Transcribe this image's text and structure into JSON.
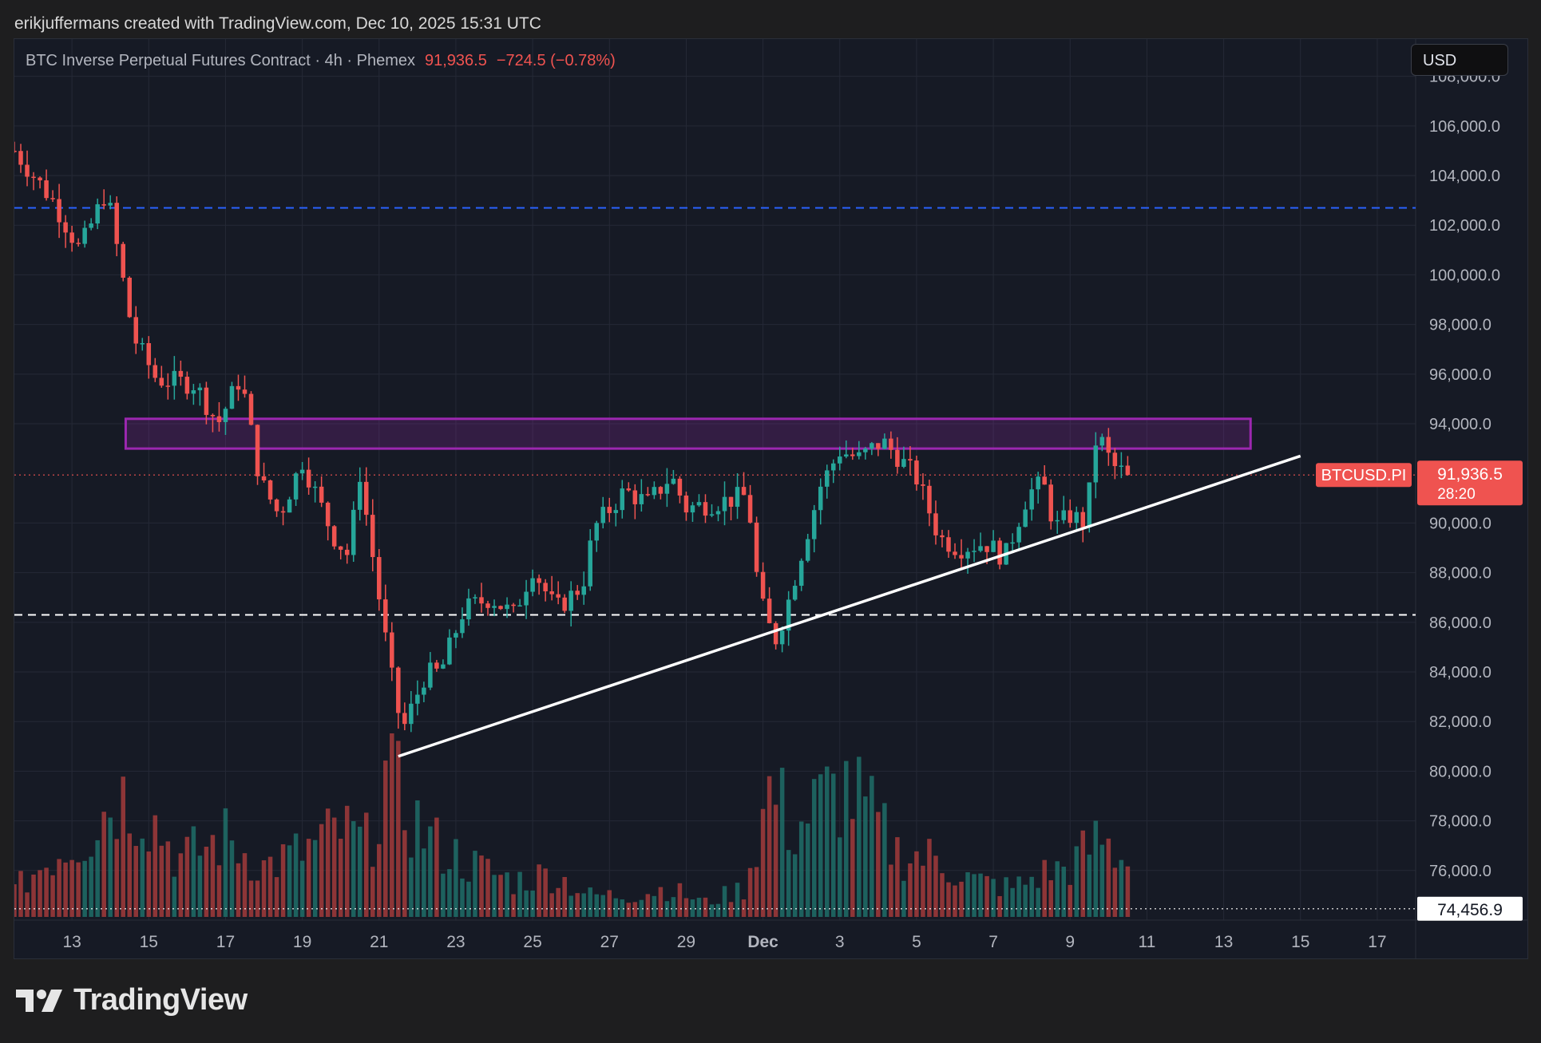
{
  "attribution": "erikjuffermans created with TradingView.com, Dec 10, 2025 15:31 UTC",
  "legend": {
    "symbol": "BTC Inverse Perpetual Futures Contract · 4h · Phemex",
    "price": "91,936.5",
    "change": "−724.5 (−0.78%)"
  },
  "currency_button": "USD",
  "brand": "TradingView",
  "colors": {
    "up": "#26a69a",
    "down": "#ef5350",
    "zone": "#9c27b0",
    "background": "#161a25"
  },
  "chart_data": {
    "type": "candlestick",
    "symbol": "BTCUSD.PI",
    "timeframe": "4h",
    "y_axis": {
      "range": [
        74000,
        109500
      ],
      "ticks": [
        "108,000.0",
        "106,000.0",
        "104,000.0",
        "102,000.0",
        "100,000.0",
        "98,000.0",
        "96,000.0",
        "94,000.0",
        "90,000.0",
        "88,000.0",
        "86,000.0",
        "84,000.0",
        "82,000.0",
        "80,000.0",
        "78,000.0",
        "76,000.0"
      ]
    },
    "x_axis": {
      "range_days": [
        11.5,
        48.0
      ],
      "ticks": [
        {
          "label": "13",
          "day": 13
        },
        {
          "label": "15",
          "day": 15
        },
        {
          "label": "17",
          "day": 17
        },
        {
          "label": "19",
          "day": 19
        },
        {
          "label": "21",
          "day": 21
        },
        {
          "label": "23",
          "day": 23
        },
        {
          "label": "25",
          "day": 25
        },
        {
          "label": "27",
          "day": 27
        },
        {
          "label": "29",
          "day": 29
        },
        {
          "label": "Dec",
          "day": 31
        },
        {
          "label": "3",
          "day": 33
        },
        {
          "label": "5",
          "day": 35
        },
        {
          "label": "7",
          "day": 37
        },
        {
          "label": "9",
          "day": 39
        },
        {
          "label": "11",
          "day": 41
        },
        {
          "label": "13",
          "day": 43
        },
        {
          "label": "15",
          "day": 45
        },
        {
          "label": "17",
          "day": 47
        }
      ]
    },
    "key_points": [
      {
        "day": 11.5,
        "price": 105000
      },
      {
        "day": 12.5,
        "price": 103000
      },
      {
        "day": 13.2,
        "price": 101000
      },
      {
        "day": 13.9,
        "price": 103400
      },
      {
        "day": 14.6,
        "price": 97500
      },
      {
        "day": 15.2,
        "price": 95800
      },
      {
        "day": 16.2,
        "price": 95600
      },
      {
        "day": 16.8,
        "price": 94000
      },
      {
        "day": 17.4,
        "price": 95900
      },
      {
        "day": 17.9,
        "price": 91700
      },
      {
        "day": 18.4,
        "price": 90300
      },
      {
        "day": 19.0,
        "price": 92500
      },
      {
        "day": 19.8,
        "price": 89500
      },
      {
        "day": 20.2,
        "price": 88700
      },
      {
        "day": 20.5,
        "price": 92000
      },
      {
        "day": 20.9,
        "price": 88000
      },
      {
        "day": 21.3,
        "price": 84000
      },
      {
        "day": 21.6,
        "price": 81600
      },
      {
        "day": 22.2,
        "price": 83900
      },
      {
        "day": 22.6,
        "price": 84000
      },
      {
        "day": 23.2,
        "price": 86500
      },
      {
        "day": 23.9,
        "price": 87000
      },
      {
        "day": 24.5,
        "price": 86300
      },
      {
        "day": 25.0,
        "price": 88200
      },
      {
        "day": 25.6,
        "price": 86500
      },
      {
        "day": 26.3,
        "price": 87500
      },
      {
        "day": 26.6,
        "price": 89800
      },
      {
        "day": 27.4,
        "price": 91300
      },
      {
        "day": 28.0,
        "price": 90800
      },
      {
        "day": 28.6,
        "price": 91900
      },
      {
        "day": 29.0,
        "price": 90600
      },
      {
        "day": 30.0,
        "price": 90900
      },
      {
        "day": 30.6,
        "price": 91100
      },
      {
        "day": 30.9,
        "price": 87000
      },
      {
        "day": 31.3,
        "price": 85200
      },
      {
        "day": 31.6,
        "price": 86500
      },
      {
        "day": 32.0,
        "price": 88800
      },
      {
        "day": 32.5,
        "price": 91500
      },
      {
        "day": 33.0,
        "price": 92900
      },
      {
        "day": 33.5,
        "price": 92600
      },
      {
        "day": 34.1,
        "price": 93300
      },
      {
        "day": 34.5,
        "price": 92700
      },
      {
        "day": 35.0,
        "price": 91800
      },
      {
        "day": 35.6,
        "price": 89400
      },
      {
        "day": 36.1,
        "price": 89000
      },
      {
        "day": 36.8,
        "price": 89200
      },
      {
        "day": 37.3,
        "price": 88600
      },
      {
        "day": 37.9,
        "price": 91200
      },
      {
        "day": 38.3,
        "price": 91600
      },
      {
        "day": 38.6,
        "price": 89800
      },
      {
        "day": 39.0,
        "price": 90300
      },
      {
        "day": 39.4,
        "price": 90000
      },
      {
        "day": 39.7,
        "price": 93700
      },
      {
        "day": 40.1,
        "price": 92300
      },
      {
        "day": 40.5,
        "price": 91936.5
      }
    ],
    "volume_profile": [
      {
        "day": 11.5,
        "v": 0.18
      },
      {
        "day": 12.6,
        "v": 0.45
      },
      {
        "day": 13.5,
        "v": 0.6
      },
      {
        "day": 14.1,
        "v": 0.85
      },
      {
        "day": 14.8,
        "v": 0.8
      },
      {
        "day": 15.8,
        "v": 0.4
      },
      {
        "day": 17.0,
        "v": 0.55
      },
      {
        "day": 18.0,
        "v": 0.35
      },
      {
        "day": 19.0,
        "v": 0.45
      },
      {
        "day": 20.0,
        "v": 0.6
      },
      {
        "day": 20.7,
        "v": 0.5
      },
      {
        "day": 21.2,
        "v": 1.0
      },
      {
        "day": 21.8,
        "v": 0.7
      },
      {
        "day": 22.5,
        "v": 0.5
      },
      {
        "day": 23.5,
        "v": 0.35
      },
      {
        "day": 24.5,
        "v": 0.25
      },
      {
        "day": 25.5,
        "v": 0.3
      },
      {
        "day": 26.5,
        "v": 0.15
      },
      {
        "day": 27.5,
        "v": 0.15
      },
      {
        "day": 28.5,
        "v": 0.2
      },
      {
        "day": 29.5,
        "v": 0.1
      },
      {
        "day": 30.5,
        "v": 0.2
      },
      {
        "day": 31.2,
        "v": 0.9
      },
      {
        "day": 31.8,
        "v": 0.6
      },
      {
        "day": 32.5,
        "v": 0.8
      },
      {
        "day": 33.2,
        "v": 0.9
      },
      {
        "day": 33.8,
        "v": 0.7
      },
      {
        "day": 34.5,
        "v": 0.45
      },
      {
        "day": 35.5,
        "v": 0.4
      },
      {
        "day": 36.5,
        "v": 0.25
      },
      {
        "day": 37.5,
        "v": 0.2
      },
      {
        "day": 38.3,
        "v": 0.3
      },
      {
        "day": 39.0,
        "v": 0.35
      },
      {
        "day": 39.8,
        "v": 0.55
      },
      {
        "day": 40.3,
        "v": 0.4
      },
      {
        "day": 40.6,
        "v": 0.55
      }
    ],
    "resistance_zone": {
      "day_start": 14.4,
      "day_end": 43.7,
      "price_low": 93000,
      "price_high": 94200
    },
    "trendline": {
      "day1": 21.5,
      "price1": 80600,
      "day2": 45.0,
      "price2": 92700
    },
    "horizontal_levels": [
      {
        "price": 102700,
        "style": "dashed",
        "color": "#2962ff"
      },
      {
        "price": 86300,
        "style": "dashed",
        "color": "#ffffff"
      },
      {
        "price": 91936.5,
        "style": "dotted",
        "color": "#ef5350"
      },
      {
        "price": 74456.9,
        "style": "dotted",
        "color": "#ffffff"
      }
    ],
    "price_label": {
      "symbol": "BTCUSD.PI",
      "price": "91,936.5",
      "countdown": "28:20"
    },
    "volume_label": "74,456.9"
  }
}
